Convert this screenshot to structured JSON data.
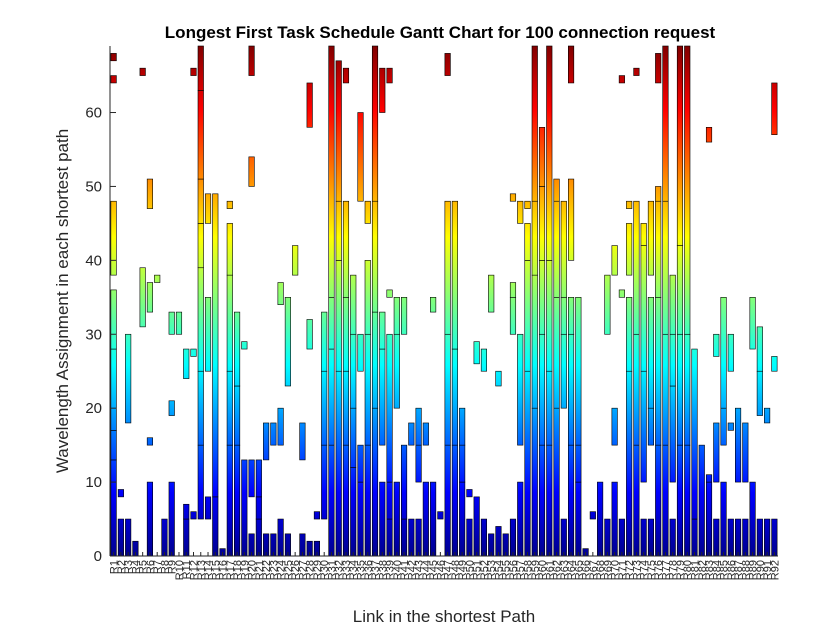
{
  "chart_data": {
    "type": "gantt",
    "title": "Longest First Task Schedule Gantt Chart for 100 connection request",
    "xlabel": "Link in the shortest Path",
    "ylabel": "Wavelength Assignment in each shortest path",
    "colormap": "jet",
    "ylim": [
      0,
      69
    ],
    "yticks": [
      0,
      10,
      20,
      30,
      40,
      50,
      60
    ],
    "categories": [
      "R1",
      "R2",
      "R3",
      "R4",
      "R5",
      "R6",
      "R7",
      "R8",
      "R9",
      "R10",
      "R11",
      "R12",
      "R13",
      "R14",
      "R15",
      "R16",
      "R17",
      "R18",
      "R19",
      "R20",
      "R21",
      "R22",
      "R23",
      "R24",
      "R25",
      "R26",
      "R27",
      "R28",
      "R29",
      "R30",
      "R31",
      "R32",
      "R33",
      "R34",
      "R35",
      "R36",
      "R37",
      "R38",
      "R39",
      "R40",
      "R41",
      "R42",
      "R43",
      "R44",
      "R45",
      "R46",
      "R47",
      "R48",
      "R49",
      "R50",
      "R51",
      "R52",
      "R53",
      "R54",
      "R55",
      "R56",
      "R57",
      "R58",
      "R59",
      "R60",
      "R61",
      "R62",
      "R63",
      "R64",
      "R65",
      "R66",
      "R67",
      "R68",
      "R69",
      "R70",
      "R71",
      "R72",
      "R73",
      "R74",
      "R75",
      "R76",
      "R77",
      "R78",
      "R79",
      "R80",
      "R81",
      "R82",
      "R83",
      "R84",
      "R85",
      "R86",
      "R87",
      "R88",
      "R89",
      "R90",
      "R91",
      "R92"
    ],
    "tasks": [
      [
        0,
        0,
        13
      ],
      [
        0,
        13,
        17
      ],
      [
        0,
        17,
        28
      ],
      [
        0,
        28,
        36
      ],
      [
        0,
        38,
        48
      ],
      [
        0,
        64,
        65
      ],
      [
        0,
        67,
        68
      ],
      [
        1,
        0,
        5
      ],
      [
        1,
        8,
        9
      ],
      [
        2,
        0,
        5
      ],
      [
        2,
        18,
        30
      ],
      [
        3,
        0,
        2
      ],
      [
        4,
        31,
        39
      ],
      [
        4,
        65,
        66
      ],
      [
        5,
        0,
        10
      ],
      [
        5,
        15,
        16
      ],
      [
        5,
        33,
        37
      ],
      [
        5,
        47,
        51
      ],
      [
        6,
        37,
        38
      ],
      [
        7,
        0,
        5
      ],
      [
        8,
        0,
        10
      ],
      [
        8,
        19,
        21
      ],
      [
        8,
        30,
        33
      ],
      [
        9,
        30,
        33
      ],
      [
        10,
        0,
        5
      ],
      [
        10,
        5,
        7
      ],
      [
        10,
        24,
        28
      ],
      [
        11,
        5,
        6
      ],
      [
        11,
        27,
        28
      ],
      [
        11,
        65,
        66
      ],
      [
        12,
        5,
        15
      ],
      [
        12,
        15,
        25
      ],
      [
        12,
        25,
        39
      ],
      [
        12,
        39,
        45
      ],
      [
        12,
        45,
        51
      ],
      [
        12,
        51,
        63
      ],
      [
        12,
        63,
        69
      ],
      [
        13,
        5,
        8
      ],
      [
        13,
        25,
        35
      ],
      [
        13,
        45,
        49
      ],
      [
        14,
        0,
        8
      ],
      [
        14,
        8,
        49
      ],
      [
        15,
        0,
        1
      ],
      [
        16,
        0,
        15
      ],
      [
        16,
        15,
        25
      ],
      [
        16,
        25,
        38
      ],
      [
        16,
        38,
        45
      ],
      [
        16,
        47,
        48
      ],
      [
        17,
        0,
        15
      ],
      [
        17,
        15,
        23
      ],
      [
        17,
        23,
        33
      ],
      [
        18,
        0,
        13
      ],
      [
        18,
        28,
        29
      ],
      [
        19,
        0,
        3
      ],
      [
        19,
        8,
        13
      ],
      [
        19,
        50,
        54
      ],
      [
        19,
        65,
        69
      ],
      [
        20,
        0,
        5
      ],
      [
        20,
        5,
        8
      ],
      [
        20,
        8,
        13
      ],
      [
        21,
        0,
        3
      ],
      [
        21,
        13,
        18
      ],
      [
        22,
        0,
        3
      ],
      [
        22,
        15,
        18
      ],
      [
        23,
        0,
        5
      ],
      [
        23,
        15,
        20
      ],
      [
        23,
        34,
        37
      ],
      [
        24,
        0,
        3
      ],
      [
        24,
        23,
        35
      ],
      [
        25,
        38,
        42
      ],
      [
        26,
        0,
        3
      ],
      [
        26,
        13,
        18
      ],
      [
        27,
        0,
        2
      ],
      [
        27,
        28,
        32
      ],
      [
        27,
        58,
        64
      ],
      [
        28,
        0,
        2
      ],
      [
        28,
        5,
        6
      ],
      [
        29,
        5,
        15
      ],
      [
        29,
        15,
        25
      ],
      [
        29,
        25,
        33
      ],
      [
        30,
        0,
        15
      ],
      [
        30,
        15,
        28
      ],
      [
        30,
        28,
        35
      ],
      [
        30,
        35,
        69
      ],
      [
        31,
        0,
        25
      ],
      [
        31,
        25,
        40
      ],
      [
        31,
        40,
        48
      ],
      [
        31,
        48,
        67
      ],
      [
        32,
        0,
        15
      ],
      [
        32,
        15,
        25
      ],
      [
        32,
        25,
        35
      ],
      [
        32,
        35,
        48
      ],
      [
        32,
        64,
        66
      ],
      [
        33,
        0,
        12
      ],
      [
        33,
        12,
        20
      ],
      [
        33,
        20,
        30
      ],
      [
        33,
        30,
        38
      ],
      [
        34,
        0,
        10
      ],
      [
        34,
        10,
        15
      ],
      [
        34,
        25,
        30
      ],
      [
        34,
        48,
        60
      ],
      [
        35,
        0,
        15
      ],
      [
        35,
        15,
        30
      ],
      [
        35,
        30,
        40
      ],
      [
        35,
        45,
        48
      ],
      [
        36,
        0,
        20
      ],
      [
        36,
        20,
        33
      ],
      [
        36,
        33,
        48
      ],
      [
        36,
        48,
        69
      ],
      [
        37,
        0,
        10
      ],
      [
        37,
        15,
        28
      ],
      [
        37,
        28,
        33
      ],
      [
        37,
        60,
        66
      ],
      [
        38,
        0,
        5
      ],
      [
        38,
        5,
        10
      ],
      [
        38,
        10,
        30
      ],
      [
        38,
        35,
        36
      ],
      [
        38,
        64,
        66
      ],
      [
        39,
        0,
        10
      ],
      [
        39,
        20,
        30
      ],
      [
        39,
        30,
        35
      ],
      [
        40,
        0,
        5
      ],
      [
        40,
        5,
        15
      ],
      [
        40,
        30,
        35
      ],
      [
        41,
        0,
        5
      ],
      [
        41,
        15,
        18
      ],
      [
        42,
        0,
        5
      ],
      [
        42,
        10,
        15
      ],
      [
        42,
        15,
        20
      ],
      [
        43,
        0,
        10
      ],
      [
        43,
        15,
        18
      ],
      [
        44,
        0,
        10
      ],
      [
        44,
        33,
        35
      ],
      [
        45,
        5,
        6
      ],
      [
        46,
        0,
        15
      ],
      [
        46,
        15,
        30
      ],
      [
        46,
        30,
        48
      ],
      [
        46,
        65,
        68
      ],
      [
        47,
        0,
        15
      ],
      [
        47,
        15,
        28
      ],
      [
        47,
        28,
        48
      ],
      [
        48,
        0,
        10
      ],
      [
        48,
        10,
        15
      ],
      [
        48,
        15,
        20
      ],
      [
        49,
        0,
        5
      ],
      [
        49,
        8,
        9
      ],
      [
        50,
        0,
        8
      ],
      [
        50,
        26,
        29
      ],
      [
        51,
        0,
        5
      ],
      [
        51,
        25,
        28
      ],
      [
        52,
        0,
        3
      ],
      [
        52,
        33,
        38
      ],
      [
        53,
        0,
        4
      ],
      [
        53,
        23,
        25
      ],
      [
        54,
        0,
        3
      ],
      [
        55,
        0,
        5
      ],
      [
        55,
        30,
        35
      ],
      [
        55,
        35,
        37
      ],
      [
        55,
        48,
        49
      ],
      [
        56,
        0,
        10
      ],
      [
        56,
        15,
        30
      ],
      [
        56,
        45,
        48
      ],
      [
        57,
        0,
        25
      ],
      [
        57,
        25,
        40
      ],
      [
        57,
        40,
        45
      ],
      [
        57,
        47,
        48
      ],
      [
        58,
        0,
        20
      ],
      [
        58,
        20,
        38
      ],
      [
        58,
        38,
        48
      ],
      [
        58,
        48,
        69
      ],
      [
        59,
        0,
        15
      ],
      [
        59,
        15,
        30
      ],
      [
        59,
        30,
        40
      ],
      [
        59,
        40,
        50
      ],
      [
        59,
        50,
        58
      ],
      [
        60,
        0,
        15
      ],
      [
        60,
        15,
        25
      ],
      [
        60,
        25,
        40
      ],
      [
        60,
        40,
        69
      ],
      [
        61,
        0,
        20
      ],
      [
        61,
        20,
        35
      ],
      [
        61,
        35,
        48
      ],
      [
        61,
        48,
        51
      ],
      [
        62,
        0,
        5
      ],
      [
        62,
        20,
        30
      ],
      [
        62,
        30,
        35
      ],
      [
        62,
        35,
        48
      ],
      [
        63,
        0,
        15
      ],
      [
        63,
        15,
        30
      ],
      [
        63,
        30,
        35
      ],
      [
        63,
        40,
        51
      ],
      [
        63,
        64,
        69
      ],
      [
        64,
        0,
        10
      ],
      [
        64,
        10,
        15
      ],
      [
        64,
        15,
        35
      ],
      [
        65,
        0,
        1
      ],
      [
        66,
        5,
        6
      ],
      [
        67,
        0,
        10
      ],
      [
        68,
        0,
        5
      ],
      [
        68,
        30,
        38
      ],
      [
        69,
        0,
        10
      ],
      [
        69,
        15,
        20
      ],
      [
        69,
        38,
        42
      ],
      [
        70,
        0,
        5
      ],
      [
        70,
        35,
        36
      ],
      [
        70,
        64,
        65
      ],
      [
        71,
        0,
        25
      ],
      [
        71,
        25,
        35
      ],
      [
        71,
        38,
        45
      ],
      [
        71,
        47,
        48
      ],
      [
        72,
        0,
        15
      ],
      [
        72,
        15,
        30
      ],
      [
        72,
        30,
        48
      ],
      [
        72,
        65,
        66
      ],
      [
        73,
        0,
        5
      ],
      [
        73,
        10,
        25
      ],
      [
        73,
        25,
        42
      ],
      [
        73,
        42,
        45
      ],
      [
        74,
        0,
        5
      ],
      [
        74,
        15,
        20
      ],
      [
        74,
        20,
        35
      ],
      [
        74,
        38,
        48
      ],
      [
        75,
        0,
        15
      ],
      [
        75,
        15,
        35
      ],
      [
        75,
        35,
        48
      ],
      [
        75,
        48,
        50
      ],
      [
        75,
        64,
        68
      ],
      [
        76,
        0,
        15
      ],
      [
        76,
        15,
        30
      ],
      [
        76,
        30,
        48
      ],
      [
        76,
        48,
        69
      ],
      [
        77,
        0,
        5
      ],
      [
        77,
        10,
        23
      ],
      [
        77,
        23,
        30
      ],
      [
        77,
        30,
        38
      ],
      [
        78,
        0,
        15
      ],
      [
        78,
        15,
        30
      ],
      [
        78,
        30,
        42
      ],
      [
        78,
        42,
        69
      ],
      [
        79,
        0,
        15
      ],
      [
        79,
        15,
        30
      ],
      [
        79,
        30,
        69
      ],
      [
        80,
        0,
        5
      ],
      [
        80,
        5,
        28
      ],
      [
        81,
        0,
        15
      ],
      [
        82,
        0,
        10
      ],
      [
        82,
        10,
        11
      ],
      [
        82,
        56,
        58
      ],
      [
        83,
        0,
        5
      ],
      [
        83,
        10,
        18
      ],
      [
        83,
        27,
        30
      ],
      [
        84,
        0,
        10
      ],
      [
        84,
        15,
        20
      ],
      [
        84,
        20,
        35
      ],
      [
        85,
        0,
        5
      ],
      [
        85,
        17,
        18
      ],
      [
        85,
        25,
        30
      ],
      [
        86,
        0,
        5
      ],
      [
        86,
        10,
        20
      ],
      [
        87,
        0,
        5
      ],
      [
        87,
        10,
        18
      ],
      [
        88,
        0,
        10
      ],
      [
        88,
        28,
        35
      ],
      [
        89,
        0,
        5
      ],
      [
        89,
        19,
        25
      ],
      [
        89,
        25,
        31
      ],
      [
        90,
        0,
        5
      ],
      [
        90,
        18,
        20
      ],
      [
        91,
        0,
        5
      ],
      [
        91,
        25,
        27
      ],
      [
        91,
        57,
        64
      ]
    ]
  }
}
